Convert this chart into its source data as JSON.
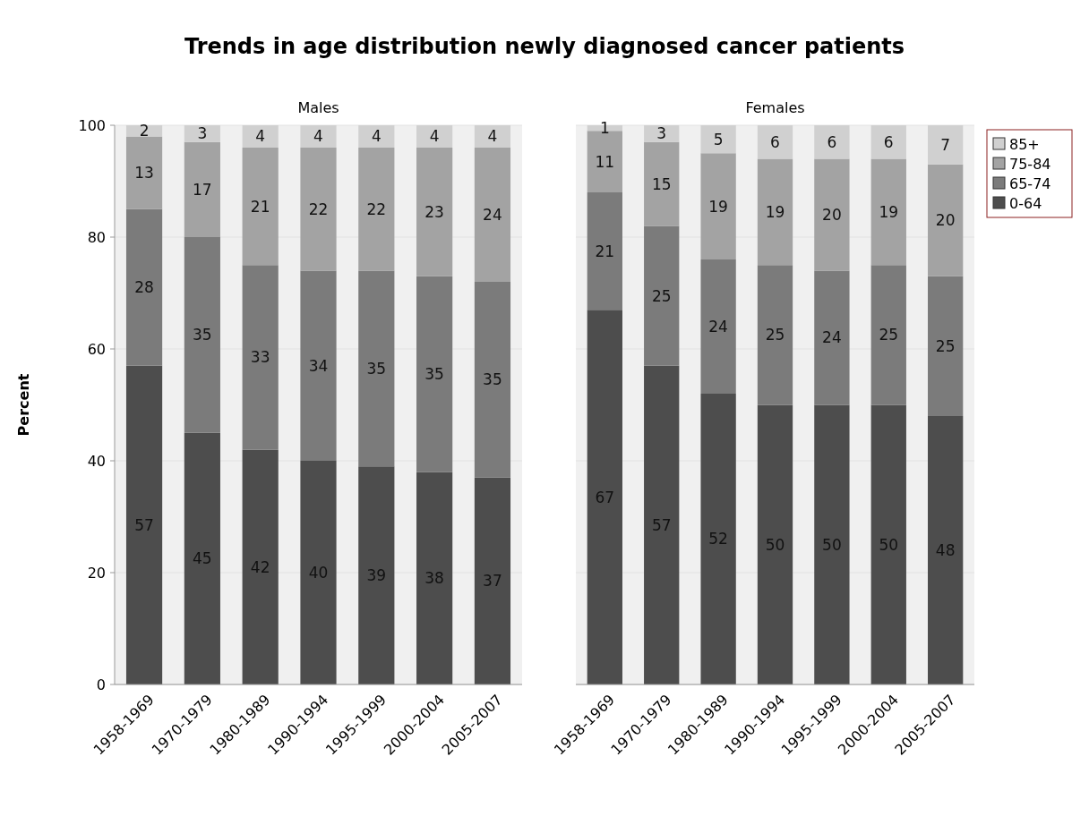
{
  "chart_data": [
    {
      "type": "bar",
      "title": "Trends in age distribution newly diagnosed cancer patients",
      "subtitle": "Males",
      "ylabel": "Percent",
      "categories": [
        "1958-1969",
        "1970-1979",
        "1980-1989",
        "1990-1994",
        "1995-1999",
        "2000-2004",
        "2005-2007"
      ],
      "stacked": true,
      "data_labels": true,
      "grid": "y",
      "ylim": [
        0,
        100
      ],
      "yticks": [
        0,
        20,
        40,
        60,
        80,
        100
      ],
      "series": [
        {
          "color": "#4d4d4d",
          "values": [
            57,
            45,
            42,
            40,
            39,
            38,
            37
          ]
        },
        {
          "color": "#7b7b7b",
          "values": [
            28,
            35,
            33,
            34,
            35,
            35,
            35
          ]
        },
        {
          "color": "#a3a3a3",
          "values": [
            13,
            17,
            21,
            22,
            22,
            23,
            24
          ]
        },
        {
          "color": "#d0d0d0",
          "values": [
            2,
            3,
            4,
            4,
            4,
            4,
            4
          ]
        }
      ]
    },
    {
      "type": "bar",
      "subtitle": "Females",
      "categories": [
        "1958-1969",
        "1970-1979",
        "1980-1989",
        "1990-1994",
        "1995-1999",
        "2000-2004",
        "2005-2007"
      ],
      "stacked": true,
      "data_labels": true,
      "grid": "y",
      "ylim": [
        0,
        100
      ],
      "yticks": [
        0,
        20,
        40,
        60,
        80,
        100
      ],
      "tick_labels": "x",
      "legend": "top right",
      "series": [
        {
          "name": "0-64",
          "color": "#4d4d4d",
          "values": [
            67,
            57,
            52,
            50,
            50,
            50,
            48
          ]
        },
        {
          "name": "65-74",
          "color": "#7b7b7b",
          "values": [
            21,
            25,
            24,
            25,
            24,
            25,
            25
          ]
        },
        {
          "name": "75-84",
          "color": "#a3a3a3",
          "values": [
            11,
            15,
            19,
            19,
            20,
            19,
            20
          ]
        },
        {
          "name": "85+",
          "color": "#d0d0d0",
          "values": [
            1,
            3,
            5,
            6,
            6,
            6,
            7
          ]
        }
      ]
    }
  ]
}
